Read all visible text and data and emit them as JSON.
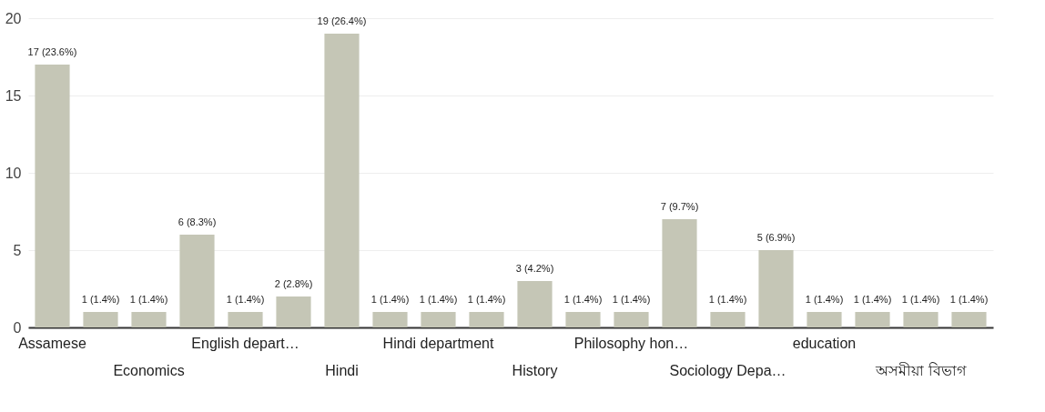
{
  "chart_data": {
    "type": "bar",
    "categories": [
      "Assamese",
      null,
      "Economics",
      null,
      "English depart…",
      null,
      "Hindi",
      null,
      "Hindi department",
      null,
      "History",
      null,
      "Philosophy hon…",
      null,
      "Sociology Depa…",
      null,
      "education",
      null,
      "অসমীয়া বিভাগ",
      null
    ],
    "values": [
      17,
      1,
      1,
      6,
      1,
      2,
      19,
      1,
      1,
      1,
      3,
      1,
      1,
      7,
      1,
      5,
      1,
      1,
      1,
      1
    ],
    "value_labels": [
      "17 (23.6%)",
      "1 (1.4%)",
      "1 (1.4%)",
      "6 (8.3%)",
      "1 (1.4%)",
      "2 (2.8%)",
      "19 (26.4%)",
      "1 (1.4%)",
      "1 (1.4%)",
      "1 (1.4%)",
      "3 (4.2%)",
      "1 (1.4%)",
      "1 (1.4%)",
      "7 (9.7%)",
      "1 (1.4%)",
      "5 (6.9%)",
      "1 (1.4%)",
      "1 (1.4%)",
      "1 (1.4%)",
      "1 (1.4%)"
    ],
    "color": "#c5c6b6",
    "ylim": [
      0,
      20
    ],
    "yticks": [
      0,
      5,
      10,
      15,
      20
    ],
    "grid": "y"
  }
}
